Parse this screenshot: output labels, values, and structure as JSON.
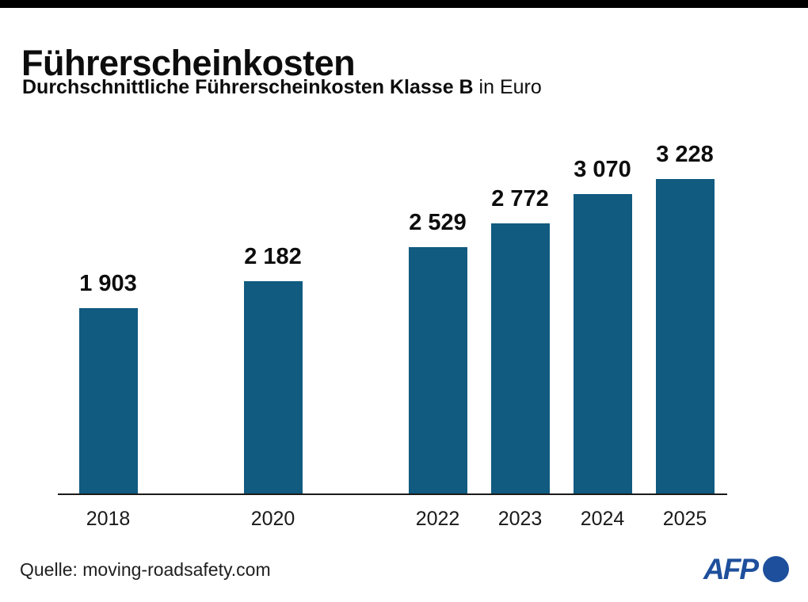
{
  "page": {
    "title": "Führerscheinkosten",
    "subtitle_bold": "Durchschnittliche Führerscheinkosten Klasse B",
    "subtitle_regular": " in Euro",
    "source": "Quelle: moving-roadsafety.com",
    "logo_text": "AFP"
  },
  "colors": {
    "bar": "#115A80",
    "afp_blue": "#1E4F9C",
    "top_bar": "#000000",
    "axis": "#1A1A1A",
    "text": "#0D0D0D"
  },
  "chart_data": {
    "type": "bar",
    "title": "Führerscheinkosten",
    "subtitle": "Durchschnittliche Führerscheinkosten Klasse B in Euro",
    "unit": "Euro",
    "categories": [
      "2018",
      "2020",
      "2022",
      "2023",
      "2024",
      "2025"
    ],
    "values": [
      1903,
      2182,
      2529,
      2772,
      3070,
      3228
    ],
    "value_labels": [
      "1 903",
      "2 182",
      "2 529",
      "2 772",
      "3 070",
      "3 228"
    ],
    "x_scale": "linear-year",
    "x_range": [
      2018,
      2025
    ],
    "ylim": [
      0,
      3400
    ],
    "grid": false,
    "legend": false,
    "value_labels_position": "above-bars",
    "source": "moving-roadsafety.com"
  }
}
